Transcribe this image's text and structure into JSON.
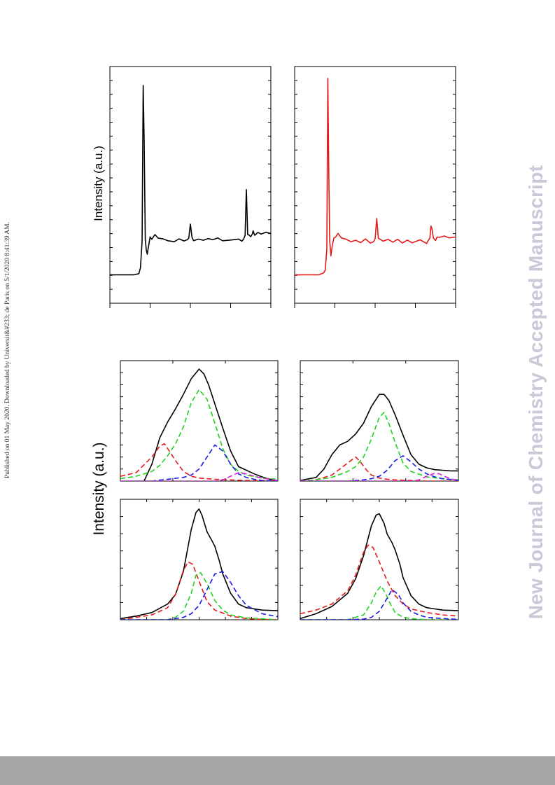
{
  "side_note": "Published on 01 May 2020. Downloaded by Universit&#233; de Paris on 5/1/2020 8:41:39 AM.",
  "watermark": "New Journal of Chemistry Accepted Manuscript",
  "top_ylabel": "Intensity (a.u.)",
  "bottom_ylabel": "Intensity (a.u.)",
  "colors": {
    "black": "#000000",
    "red": "#e8191a",
    "green": "#1ed41e",
    "blue": "#1a1ae8",
    "magenta": "#e01ee0"
  },
  "chart_data": [
    {
      "type": "line",
      "id": "spectrum-black",
      "xlim": [
        0,
        100
      ],
      "ylim": [
        0,
        100
      ],
      "ticks_x": [
        0,
        25,
        50,
        75,
        100
      ],
      "ticks_y_count": 17,
      "series": [
        {
          "color": "#000000",
          "x": [
            0,
            5,
            10,
            15,
            18,
            19,
            20,
            20.7,
            21.3,
            22,
            22.6,
            23.2,
            24,
            25,
            26,
            28,
            30,
            33,
            36,
            40,
            43,
            46,
            48,
            49,
            50,
            51,
            52,
            55,
            58,
            61,
            64,
            67,
            70,
            75,
            80,
            82,
            83,
            84,
            84.8,
            85.6,
            86.2,
            87.5,
            88.5,
            89,
            89.5,
            90,
            92,
            94,
            97,
            100
          ],
          "y": [
            12,
            12,
            12,
            12,
            12.5,
            15,
            26,
            92,
            68,
            27,
            22.5,
            20.7,
            24,
            28,
            27,
            29,
            27.5,
            27.2,
            26.4,
            26,
            27.2,
            26.3,
            26.8,
            27.5,
            33.4,
            28,
            26.4,
            27.1,
            26.6,
            27.3,
            26.8,
            27.6,
            26.4,
            26.7,
            27.1,
            26.2,
            27,
            28.6,
            48,
            29,
            28.9,
            28.1,
            29.3,
            30.6,
            29.5,
            28.7,
            29.9,
            29.2,
            30,
            29.4
          ]
        }
      ]
    },
    {
      "type": "line",
      "id": "spectrum-red",
      "xlim": [
        0,
        100
      ],
      "ylim": [
        0,
        100
      ],
      "ticks_x": [
        0,
        25,
        50,
        75,
        100
      ],
      "ticks_y_count": 17,
      "series": [
        {
          "color": "#e8191a",
          "x": [
            0,
            5,
            10,
            15,
            18,
            19,
            20,
            20.6,
            21.2,
            21.8,
            22.5,
            23.3,
            24.3,
            25.5,
            27,
            29,
            32,
            35,
            38,
            41,
            44,
            47,
            49,
            50,
            51,
            52,
            55,
            58,
            61,
            64,
            67,
            70,
            73,
            78,
            82,
            83,
            84,
            84.7,
            85.3,
            86.2,
            87.5,
            88.5,
            90,
            93,
            96,
            100
          ],
          "y": [
            12,
            12,
            12,
            12,
            12.8,
            14,
            23,
            95,
            55,
            26.5,
            20,
            24,
            27.5,
            28,
            29.5,
            27.6,
            27,
            26,
            26.6,
            25.6,
            27.2,
            25.4,
            26,
            27.2,
            35.8,
            27.5,
            26.2,
            27,
            25.8,
            27,
            25.4,
            26.7,
            25.5,
            26.8,
            25.2,
            26.5,
            27.5,
            32.6,
            31.5,
            27.5,
            26.5,
            28,
            27.8,
            28.4,
            27.6,
            28
          ]
        }
      ]
    },
    {
      "type": "line",
      "id": "fit-top-left",
      "xlim": [
        0,
        100
      ],
      "ylim": [
        0,
        100
      ],
      "ticks_x": [
        0,
        33.3,
        66.7,
        100
      ],
      "ticks_y_count": 10,
      "series": [
        {
          "name": "",
          "color": "#000000",
          "dash": false,
          "x": [
            15,
            20,
            25,
            30,
            35,
            40,
            45,
            50,
            53,
            56,
            60,
            65,
            70,
            75,
            80,
            85,
            90,
            95,
            100
          ],
          "y": [
            0,
            14,
            36,
            49,
            60,
            72,
            85,
            93,
            89,
            80,
            64,
            44,
            25,
            12,
            9,
            6,
            3.5,
            1.5,
            0
          ]
        },
        {
          "name": "",
          "color": "#1ed41e",
          "dash": true,
          "x": [
            0,
            10,
            20,
            25,
            30,
            35,
            40,
            45,
            50,
            55,
            60,
            65,
            70,
            75,
            80,
            90,
            100
          ],
          "y": [
            2,
            4,
            8,
            13,
            21,
            31,
            45,
            65,
            76,
            68,
            48,
            27,
            14,
            8,
            5,
            2.5,
            1.5
          ]
        },
        {
          "name": "",
          "color": "#e8191a",
          "dash": true,
          "x": [
            0,
            10,
            20,
            25,
            28,
            31,
            35,
            40,
            45,
            50,
            60,
            70,
            80,
            90,
            100
          ],
          "y": [
            4,
            7,
            20,
            29,
            31,
            25,
            17,
            8,
            4,
            2.5,
            1.5,
            1,
            0.5,
            0.3,
            0
          ]
        },
        {
          "name": "",
          "color": "#1a1ae8",
          "dash": true,
          "x": [
            0,
            20,
            30,
            40,
            45,
            50,
            55,
            60,
            65,
            70,
            75,
            80,
            85,
            90,
            100
          ],
          "y": [
            0,
            0,
            1.5,
            3,
            5,
            10,
            20,
            30,
            25,
            14,
            6,
            3,
            1.5,
            0.5,
            0
          ]
        },
        {
          "name": "",
          "color": "#e01ee0",
          "dash": true,
          "x": [
            0,
            50,
            60,
            65,
            70,
            75,
            80,
            85,
            90,
            95,
            100
          ],
          "y": [
            0,
            0,
            0,
            1,
            4,
            7,
            6,
            4,
            2.5,
            1.5,
            0.5
          ]
        }
      ]
    },
    {
      "type": "line",
      "id": "fit-top-right",
      "xlim": [
        0,
        100
      ],
      "ylim": [
        0,
        100
      ],
      "ticks_x": [
        0,
        33.3,
        66.7,
        100
      ],
      "ticks_y_count": 10,
      "series": [
        {
          "name": "",
          "color": "#000000",
          "dash": false,
          "x": [
            0,
            10,
            15,
            20,
            25,
            30,
            35,
            40,
            45,
            50,
            53,
            56,
            60,
            65,
            70,
            75,
            80,
            85,
            90,
            95,
            100
          ],
          "y": [
            0.5,
            3,
            10,
            22,
            30,
            33,
            39,
            48,
            62,
            72,
            72,
            67,
            55,
            38,
            22,
            14,
            11,
            9.5,
            9,
            8.5,
            8.5
          ]
        },
        {
          "name": "",
          "color": "#e8191a",
          "dash": true,
          "x": [
            0,
            10,
            20,
            30,
            35,
            38,
            42,
            45,
            50,
            55,
            60,
            70,
            80,
            90,
            100
          ],
          "y": [
            0,
            1,
            5,
            15,
            20,
            16,
            9,
            5,
            2.5,
            1.5,
            1,
            0.5,
            0,
            0,
            0
          ]
        },
        {
          "name": "",
          "color": "#1ed41e",
          "dash": true,
          "x": [
            0,
            10,
            20,
            30,
            35,
            40,
            45,
            50,
            53,
            56,
            60,
            65,
            70,
            80,
            90,
            100
          ],
          "y": [
            0,
            1,
            3,
            8,
            12,
            20,
            35,
            53,
            57,
            48,
            32,
            15,
            8,
            3.5,
            2,
            1
          ]
        },
        {
          "name": "",
          "color": "#1a1ae8",
          "dash": true,
          "x": [
            0,
            20,
            30,
            40,
            45,
            50,
            55,
            60,
            65,
            70,
            75,
            80,
            85,
            90,
            100
          ],
          "y": [
            0,
            0,
            0,
            1,
            2,
            4,
            9,
            17,
            21,
            16,
            10,
            6,
            3.5,
            2,
            0.5
          ]
        },
        {
          "name": "",
          "color": "#e01ee0",
          "dash": true,
          "x": [
            0,
            60,
            70,
            75,
            80,
            85,
            88,
            91,
            95,
            100
          ],
          "y": [
            0,
            0,
            0,
            1,
            4,
            6.5,
            6,
            4,
            2,
            0.5
          ]
        }
      ]
    },
    {
      "type": "line",
      "id": "fit-bottom-left",
      "xlim": [
        0,
        100
      ],
      "ylim": [
        0,
        100
      ],
      "ticks_x": [
        0,
        16.7,
        33.3,
        50,
        66.7,
        83.3,
        100
      ],
      "ticks_y_count": 7,
      "series": [
        {
          "name": "",
          "color": "#000000",
          "dash": false,
          "x": [
            0,
            10,
            20,
            30,
            35,
            40,
            45,
            48,
            50,
            52,
            55,
            58,
            60,
            63,
            65,
            70,
            75,
            80,
            85,
            90,
            100
          ],
          "y": [
            1,
            3,
            6,
            13,
            21,
            40,
            75,
            89,
            92,
            86,
            73,
            66,
            61,
            48,
            38,
            22,
            13,
            10,
            9,
            8,
            7.5
          ]
        },
        {
          "name": "",
          "color": "#e8191a",
          "dash": true,
          "x": [
            0,
            10,
            20,
            30,
            35,
            40,
            43,
            46,
            50,
            55,
            60,
            70,
            80,
            90,
            100
          ],
          "y": [
            0,
            2,
            4,
            10,
            21,
            41,
            48,
            46,
            32,
            15,
            8,
            3,
            1,
            0.3,
            0
          ]
        },
        {
          "name": "",
          "color": "#1ed41e",
          "dash": true,
          "x": [
            0,
            20,
            30,
            35,
            40,
            45,
            48,
            51,
            55,
            60,
            65,
            70,
            80,
            100
          ],
          "y": [
            0,
            0,
            0,
            2,
            7,
            22,
            37,
            39,
            30,
            16,
            8,
            4,
            1.5,
            0
          ]
        },
        {
          "name": "",
          "color": "#1a1ae8",
          "dash": true,
          "x": [
            0,
            30,
            40,
            45,
            50,
            55,
            60,
            65,
            70,
            75,
            80,
            90,
            100
          ],
          "y": [
            0,
            0,
            2,
            5,
            12,
            25,
            38,
            40,
            31,
            20,
            12,
            5,
            2.5
          ]
        }
      ]
    },
    {
      "type": "line",
      "id": "fit-bottom-right",
      "xlim": [
        0,
        100
      ],
      "ylim": [
        0,
        100
      ],
      "ticks_x": [
        0,
        16.7,
        33.3,
        50,
        66.7,
        83.3,
        100
      ],
      "ticks_y_count": 7,
      "series": [
        {
          "name": "",
          "color": "#000000",
          "dash": false,
          "x": [
            0,
            10,
            20,
            30,
            35,
            40,
            45,
            48,
            50,
            53,
            55,
            58,
            60,
            63,
            65,
            70,
            75,
            80,
            85,
            90,
            100
          ],
          "y": [
            1,
            5,
            11,
            22,
            34,
            53,
            78,
            87,
            88,
            80,
            71,
            64,
            58,
            46,
            35,
            20,
            13,
            10,
            9,
            8,
            7.5
          ]
        },
        {
          "name": "",
          "color": "#e8191a",
          "dash": true,
          "x": [
            0,
            10,
            20,
            30,
            35,
            40,
            43,
            46,
            50,
            55,
            60,
            65,
            70,
            80,
            90,
            100
          ],
          "y": [
            5,
            8,
            13,
            24,
            37,
            56,
            62,
            60,
            48,
            32,
            20,
            13,
            9,
            6,
            4,
            3
          ]
        },
        {
          "name": "",
          "color": "#1ed41e",
          "dash": true,
          "x": [
            0,
            30,
            40,
            45,
            48,
            51,
            54,
            57,
            60,
            65,
            70,
            80,
            100
          ],
          "y": [
            0,
            0,
            4,
            14,
            23,
            28,
            22,
            13,
            6,
            2,
            1,
            0,
            0
          ]
        },
        {
          "name": "",
          "color": "#1a1ae8",
          "dash": true,
          "x": [
            0,
            30,
            40,
            45,
            50,
            55,
            58,
            62,
            65,
            70,
            75,
            80,
            90,
            100
          ],
          "y": [
            0,
            0,
            0.5,
            2,
            7,
            18,
            25,
            21,
            14,
            7,
            4,
            2,
            1,
            0.3
          ]
        }
      ]
    }
  ]
}
